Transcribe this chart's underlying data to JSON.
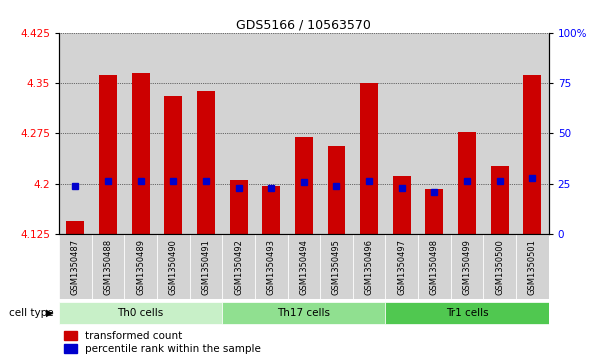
{
  "title": "GDS5166 / 10563570",
  "samples": [
    "GSM1350487",
    "GSM1350488",
    "GSM1350489",
    "GSM1350490",
    "GSM1350491",
    "GSM1350492",
    "GSM1350493",
    "GSM1350494",
    "GSM1350495",
    "GSM1350496",
    "GSM1350497",
    "GSM1350498",
    "GSM1350499",
    "GSM1350500",
    "GSM1350501"
  ],
  "red_values": [
    4.145,
    4.362,
    4.365,
    4.33,
    4.338,
    4.205,
    4.196,
    4.27,
    4.256,
    4.35,
    4.212,
    4.192,
    4.277,
    4.227,
    4.362
  ],
  "blue_values": [
    4.196,
    4.204,
    4.204,
    4.204,
    4.204,
    4.193,
    4.193,
    4.202,
    4.196,
    4.204,
    4.194,
    4.188,
    4.204,
    4.204,
    4.208
  ],
  "y_min": 4.125,
  "y_max": 4.425,
  "y_ticks_left": [
    4.125,
    4.2,
    4.275,
    4.35,
    4.425
  ],
  "y_ticks_right": [
    0,
    25,
    50,
    75,
    100
  ],
  "cell_groups": [
    {
      "label": "Th0 cells",
      "start": 0,
      "end": 5,
      "color": "#c8f0c8"
    },
    {
      "label": "Th17 cells",
      "start": 5,
      "end": 10,
      "color": "#90e090"
    },
    {
      "label": "Tr1 cells",
      "start": 10,
      "end": 15,
      "color": "#50c850"
    }
  ],
  "bar_width": 0.55,
  "red_color": "#cc0000",
  "blue_color": "#0000cc",
  "bg_color": "#d3d3d3",
  "legend_red": "transformed count",
  "legend_blue": "percentile rank within the sample",
  "cell_type_label": "cell type"
}
